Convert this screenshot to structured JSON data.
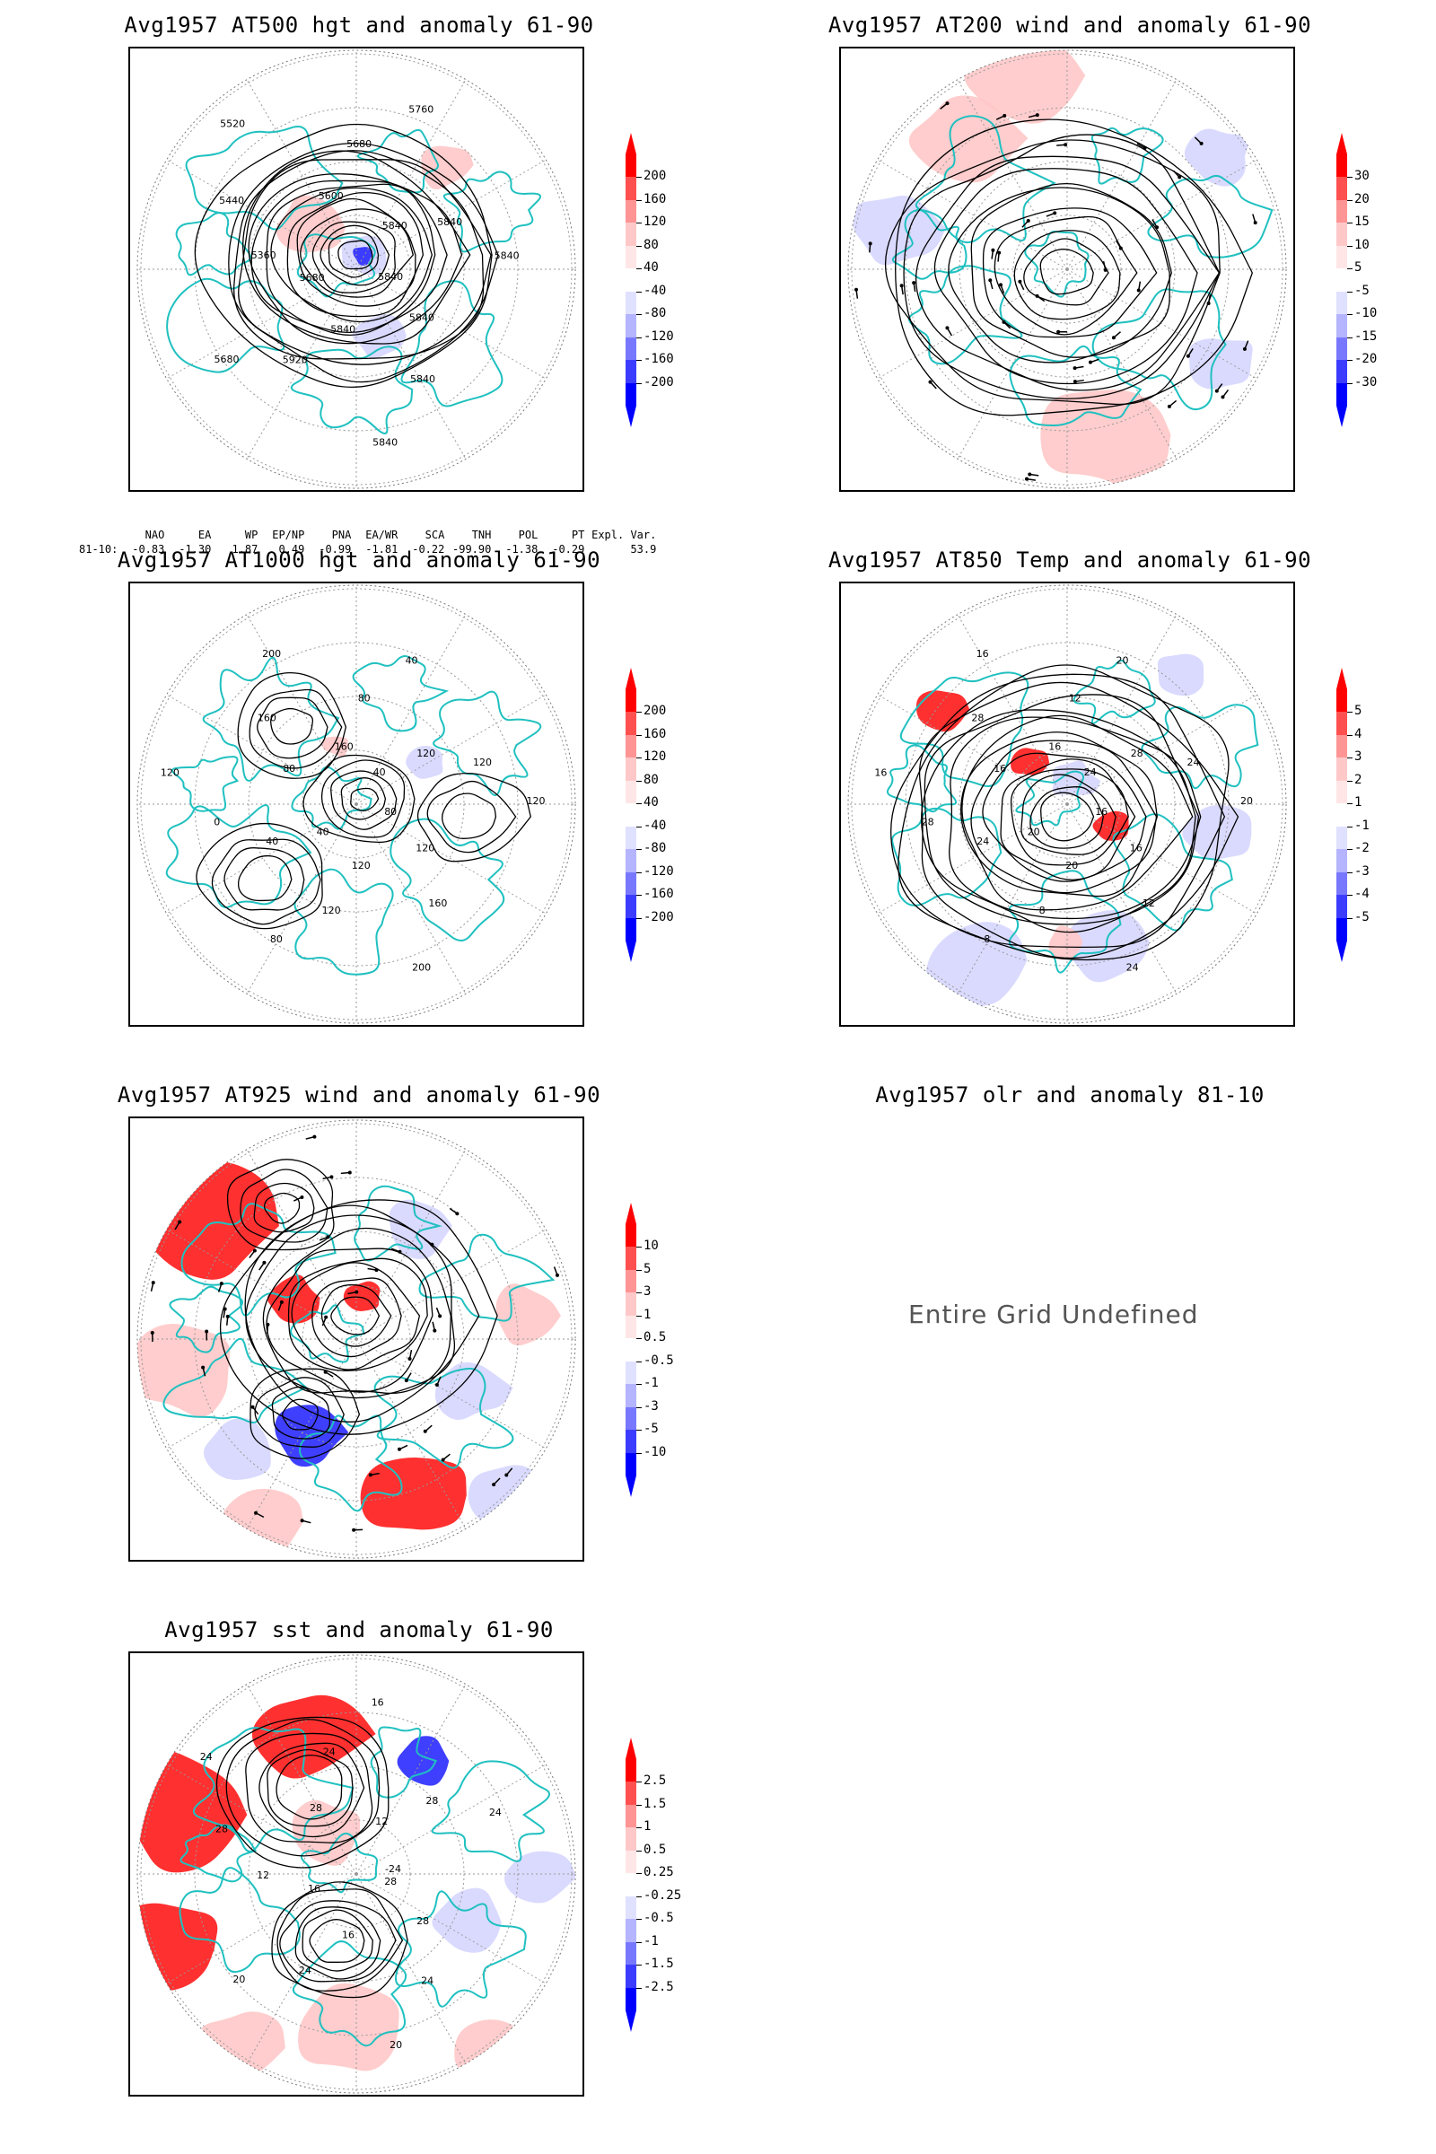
{
  "panels": [
    {
      "id": "p1",
      "title": "Avg1957 AT500 hgt and anomaly 61-90",
      "colorbar": [
        "200",
        "160",
        "120",
        "80",
        "40",
        "-40",
        "-80",
        "-120",
        "-160",
        "-200"
      ],
      "contour_labels": [
        "5840",
        "5840",
        "5840",
        "5840",
        "5840",
        "5920",
        "5680",
        "5680",
        "5360",
        "5440",
        "5520",
        "5600",
        "5680",
        "5760",
        "5840",
        "5840",
        "5840"
      ]
    },
    {
      "id": "p2",
      "title": "Avg1957 AT200 wind and anomaly 61-90",
      "colorbar": [
        "30",
        "20",
        "15",
        "10",
        "5",
        "-5",
        "-10",
        "-15",
        "-20",
        "-30"
      ],
      "contour_labels": []
    },
    {
      "id": "p3",
      "title": "Avg1957 AT1000 hgt and anomaly 61-90",
      "colorbar": [
        "200",
        "160",
        "120",
        "80",
        "40",
        "-40",
        "-80",
        "-120",
        "-160",
        "-200"
      ],
      "contour_labels": [
        "80",
        "120",
        "160",
        "200",
        "120",
        "120",
        "80",
        "40",
        "40",
        "0",
        "120",
        "80",
        "160",
        "200",
        "160",
        "80",
        "40",
        "40",
        "120",
        "120",
        "120"
      ]
    },
    {
      "id": "p4",
      "title": "Avg1957 AT850 Temp and anomaly 61-90",
      "colorbar": [
        "5",
        "4",
        "3",
        "2",
        "1",
        "-1",
        "-2",
        "-3",
        "-4",
        "-5"
      ],
      "contour_labels": [
        "16",
        "16",
        "12",
        "24",
        "20",
        "8",
        "8",
        "20",
        "24",
        "28",
        "16",
        "16",
        "28",
        "16",
        "16",
        "12",
        "20",
        "24",
        "28",
        "24",
        "20"
      ]
    },
    {
      "id": "p5",
      "title": "Avg1957 AT925 wind and anomaly 61-90",
      "colorbar": [
        "10",
        "5",
        "3",
        "1",
        "0.5",
        "-0.5",
        "-1",
        "-3",
        "-5",
        "-10"
      ],
      "contour_labels": []
    },
    {
      "id": "p6",
      "title": "Avg1957 olr and anomaly 81-10",
      "colorbar": [],
      "contour_labels": []
    },
    {
      "id": "p7",
      "title": "Avg1957 sst and anomaly 61-90",
      "colorbar": [
        "2.5",
        "1.5",
        "1",
        "0.5",
        "0.25",
        "-0.25",
        "-0.5",
        "-1",
        "-1.5",
        "-2.5"
      ],
      "contour_labels": [
        "28",
        "28",
        "24",
        "20",
        "16",
        "24",
        "20",
        "16",
        "12",
        "28",
        "24",
        "28",
        "24",
        "16",
        "12",
        "28",
        "24",
        "-24"
      ]
    }
  ],
  "indices": {
    "headers": [
      "NAO",
      "EA",
      "WP",
      "EP/NP",
      "PNA",
      "EA/WR",
      "SCA",
      "TNH",
      "POL",
      "PT",
      "Expl. Var."
    ],
    "row_label": "81-10:",
    "values": [
      "-0.83",
      "-1.30",
      "1.87",
      "0.49",
      "-0.99",
      "-1.81",
      "-0.22",
      "-99.90",
      "-1.38",
      "-0.29",
      "53.9"
    ]
  },
  "undefined_message": "Entire Grid Undefined",
  "colors": {
    "coast": "#20c0c0",
    "contour": "#000000",
    "warm_strong": "#ff1a1a",
    "warm_light": "#ffc8c8",
    "cool_light": "#d6d6ff",
    "cool_strong": "#2a2aff",
    "graticule": "#999999"
  }
}
